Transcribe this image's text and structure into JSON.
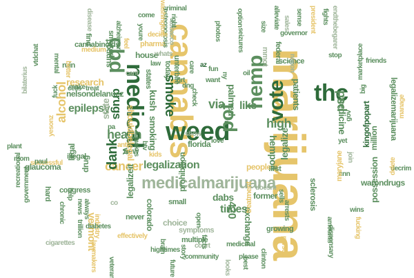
{
  "palette": {
    "dark_green": "#2e6b3a",
    "mid_green": "#5c8f5f",
    "sage": "#9fb59a",
    "gold": "#e6c56b",
    "light_gold": "#efd9a0",
    "grey": "#9a9a9a",
    "light_grey": "#c4c4c4"
  },
  "words": [
    {
      "text": "marijuana"
    },
    {
      "text": "cannabis"
    },
    {
      "text": "medicalmarijuana"
    },
    {
      "text": "weed"
    },
    {
      "text": "medical"
    },
    {
      "text": "thc"
    },
    {
      "text": "hemp"
    },
    {
      "text": "vote"
    },
    {
      "text": "cbd"
    },
    {
      "text": "pot"
    },
    {
      "text": "legalization"
    },
    {
      "text": "cancer"
    },
    {
      "text": "dank"
    },
    {
      "text": "health"
    },
    {
      "text": "smoke"
    },
    {
      "text": "drugs"
    },
    {
      "text": "alcohol"
    },
    {
      "text": "epilepsy"
    },
    {
      "text": "research"
    },
    {
      "text": "legalizemarijuana"
    },
    {
      "text": "medicine"
    },
    {
      "text": "psd"
    },
    {
      "text": "times"
    },
    {
      "text": "dabs"
    },
    {
      "text": "420"
    },
    {
      "text": "hempoil"
    },
    {
      "text": "legalize"
    },
    {
      "text": "high"
    },
    {
      "text": "like"
    },
    {
      "text": "via"
    },
    {
      "text": "patients"
    },
    {
      "text": "prohibition"
    },
    {
      "text": "possession"
    },
    {
      "text": "legalizeit"
    },
    {
      "text": "colorado"
    },
    {
      "text": "vermont"
    },
    {
      "text": "kush"
    },
    {
      "text": "florida"
    },
    {
      "text": "smoking"
    },
    {
      "text": "nelsondelanuez"
    },
    {
      "text": "kingofpopart"
    },
    {
      "text": "marketplace"
    },
    {
      "text": "glaucoma"
    },
    {
      "text": "congress"
    },
    {
      "text": "million"
    },
    {
      "text": "warondrugs"
    },
    {
      "text": "exchange"
    },
    {
      "text": "former"
    },
    {
      "text": "treatment"
    },
    {
      "text": "growing"
    },
    {
      "text": "symptoms"
    },
    {
      "text": "multiple"
    },
    {
      "text": "choice"
    },
    {
      "text": "legal"
    },
    {
      "text": "illegal"
    },
    {
      "text": "state"
    },
    {
      "text": "new"
    },
    {
      "text": "science"
    },
    {
      "text": "federal"
    },
    {
      "text": "mmot"
    },
    {
      "text": "palmed"
    },
    {
      "text": "sclerosis"
    },
    {
      "text": "arrests"
    },
    {
      "text": "amounts"
    },
    {
      "text": "first"
    },
    {
      "text": "people"
    },
    {
      "text": "shouldbelegal"
    },
    {
      "text": "pharma"
    },
    {
      "text": "house"
    },
    {
      "text": "support"
    },
    {
      "text": "ruin"
    },
    {
      "text": "cannabinoids"
    },
    {
      "text": "smoked"
    },
    {
      "text": "find"
    },
    {
      "text": "osteoporosis"
    },
    {
      "text": "criminal"
    },
    {
      "text": "washington"
    },
    {
      "text": "come"
    },
    {
      "text": "alzheimer"
    },
    {
      "text": "youre"
    },
    {
      "text": "decide"
    },
    {
      "text": "whats"
    },
    {
      "text": "feel"
    },
    {
      "text": "law"
    },
    {
      "text": "states"
    },
    {
      "text": "today"
    },
    {
      "text": "unterblie"
    },
    {
      "text": "tobacco"
    },
    {
      "text": "photos"
    },
    {
      "text": "seizures"
    },
    {
      "text": "governor"
    },
    {
      "text": "alleviate"
    },
    {
      "text": "president"
    },
    {
      "text": "fights"
    },
    {
      "text": "endthebegarer"
    },
    {
      "text": "friends"
    },
    {
      "text": "stop"
    },
    {
      "text": "big"
    },
    {
      "text": "gov"
    },
    {
      "text": "yet"
    },
    {
      "text": "cnn"
    },
    {
      "text": "maryjane"
    },
    {
      "text": "decrim"
    },
    {
      "text": "delete"
    },
    {
      "text": "manage"
    },
    {
      "text": "wins"
    },
    {
      "text": "fucking"
    },
    {
      "text": "dispensary"
    },
    {
      "text": "fuck"
    },
    {
      "text": "cells"
    },
    {
      "text": "treat"
    },
    {
      "text": "mental"
    },
    {
      "text": "better"
    },
    {
      "text": "help"
    },
    {
      "text": "news"
    },
    {
      "text": "always"
    },
    {
      "text": "drug"
    },
    {
      "text": "small"
    },
    {
      "text": "never"
    },
    {
      "text": "hard"
    },
    {
      "text": "chronic"
    },
    {
      "text": "trillion"
    },
    {
      "text": "industry"
    },
    {
      "text": "diabetes"
    },
    {
      "text": "effectively"
    },
    {
      "text": "hightimes"
    },
    {
      "text": "community"
    },
    {
      "text": "brain"
    },
    {
      "text": "story"
    },
    {
      "text": "court"
    },
    {
      "text": "facts"
    },
    {
      "text": "medicinal"
    },
    {
      "text": "please"
    },
    {
      "text": "best"
    },
    {
      "text": "clinton"
    },
    {
      "text": "person"
    },
    {
      "text": "recreational"
    },
    {
      "text": "government"
    },
    {
      "text": "successful"
    },
    {
      "text": "plant"
    },
    {
      "text": "vtdchat"
    },
    {
      "text": "bilaterius"
    },
    {
      "text": "mom"
    },
    {
      "text": "paul"
    },
    {
      "text": "yesonz"
    },
    {
      "text": "cigarettes"
    },
    {
      "text": "lawmakers"
    },
    {
      "text": "veterans"
    },
    {
      "text": "future"
    },
    {
      "text": "looks"
    },
    {
      "text": "make"
    },
    {
      "text": "makes"
    },
    {
      "text": "anti"
    },
    {
      "text": "kids"
    },
    {
      "text": "btv"
    },
    {
      "text": "cant"
    },
    {
      "text": "care"
    },
    {
      "text": "want"
    },
    {
      "text": "check"
    },
    {
      "text": "love"
    },
    {
      "text": "show"
    },
    {
      "text": "open"
    },
    {
      "text": "doesnt"
    },
    {
      "text": "sells"
    },
    {
      "text": "nation"
    },
    {
      "text": "grt"
    },
    {
      "text": "dng"
    },
    {
      "text": "az"
    },
    {
      "text": "fun"
    },
    {
      "text": "ny"
    },
    {
      "text": "right"
    },
    {
      "text": "sense"
    },
    {
      "text": "disease"
    },
    {
      "text": "medium"
    },
    {
      "text": "option"
    },
    {
      "text": "size"
    },
    {
      "text": "sales"
    },
    {
      "text": "join"
    },
    {
      "text": "oil"
    },
    {
      "text": "pa"
    },
    {
      "text": "co"
    },
    {
      "text": "vt"
    }
  ]
}
